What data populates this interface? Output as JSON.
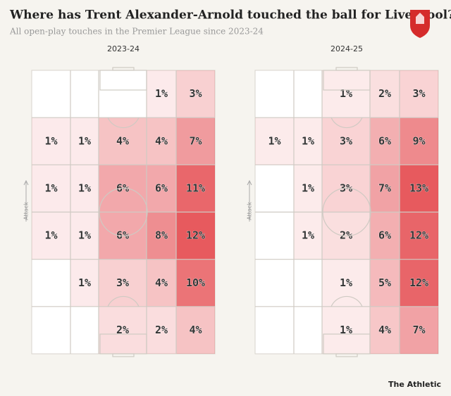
{
  "title": "Where has Trent Alexander-Arnold touched the ball for Liverpool?",
  "subtitle": "All open-play touches in the Premier League since 2023-24",
  "brand": "The Athletic",
  "chart_data": [
    {
      "type": "heatmap",
      "title": "2023-24",
      "axis_label": "Attack",
      "color": "#e23a3f",
      "values": [
        [
          null,
          null,
          null,
          1,
          3
        ],
        [
          1,
          1,
          4,
          4,
          7
        ],
        [
          1,
          1,
          6,
          6,
          11
        ],
        [
          1,
          1,
          6,
          8,
          12
        ],
        [
          null,
          1,
          3,
          4,
          10
        ],
        [
          null,
          null,
          2,
          2,
          4
        ]
      ],
      "value_labels": [
        [
          null,
          null,
          null,
          "1%",
          "3%"
        ],
        [
          "1%",
          "1%",
          "4%",
          "4%",
          "7%"
        ],
        [
          "1%",
          "1%",
          "6%",
          "6%",
          "11%"
        ],
        [
          "1%",
          "1%",
          "6%",
          "8%",
          "12%"
        ],
        [
          null,
          "1%",
          "3%",
          "4%",
          "10%"
        ],
        [
          null,
          null,
          "2%",
          "2%",
          "4%"
        ]
      ]
    },
    {
      "type": "heatmap",
      "title": "2024-25",
      "axis_label": "Attack",
      "color": "#e23a3f",
      "values": [
        [
          null,
          null,
          1,
          2,
          3
        ],
        [
          1,
          1,
          3,
          6,
          9
        ],
        [
          null,
          1,
          3,
          7,
          13
        ],
        [
          null,
          1,
          2,
          6,
          12
        ],
        [
          null,
          null,
          1,
          5,
          12
        ],
        [
          null,
          null,
          1,
          4,
          7
        ]
      ],
      "value_labels": [
        [
          null,
          null,
          "1%",
          "2%",
          "3%"
        ],
        [
          "1%",
          "1%",
          "3%",
          "6%",
          "9%"
        ],
        [
          null,
          "1%",
          "3%",
          "7%",
          "13%"
        ],
        [
          null,
          "1%",
          "2%",
          "6%",
          "12%"
        ],
        [
          null,
          null,
          "1%",
          "5%",
          "12%"
        ],
        [
          null,
          null,
          "1%",
          "4%",
          "7%"
        ]
      ]
    }
  ]
}
